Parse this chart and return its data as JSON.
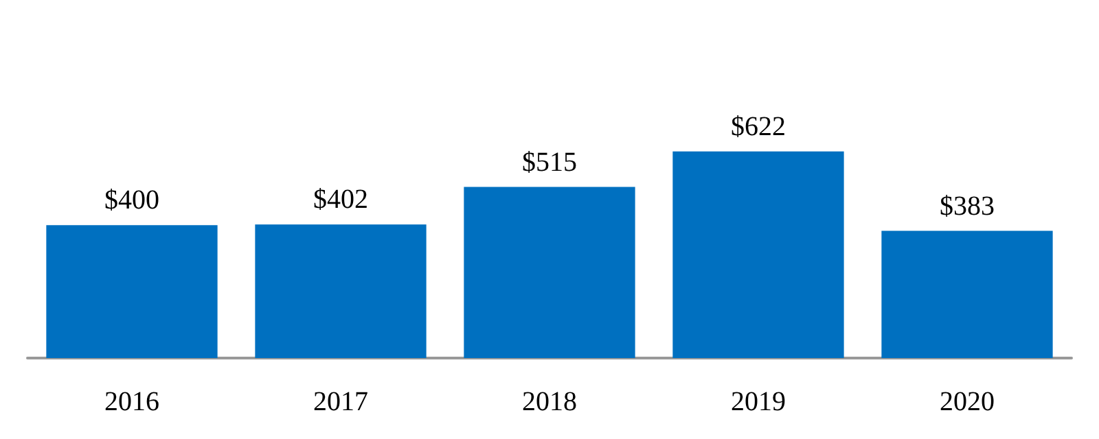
{
  "chart_data": {
    "type": "bar",
    "categories": [
      "2016",
      "2017",
      "2018",
      "2019",
      "2020"
    ],
    "values": [
      400,
      402,
      515,
      622,
      383
    ],
    "value_labels": [
      "$400",
      "$402",
      "$515",
      "$622",
      "$383"
    ],
    "color": "#0070c0"
  }
}
